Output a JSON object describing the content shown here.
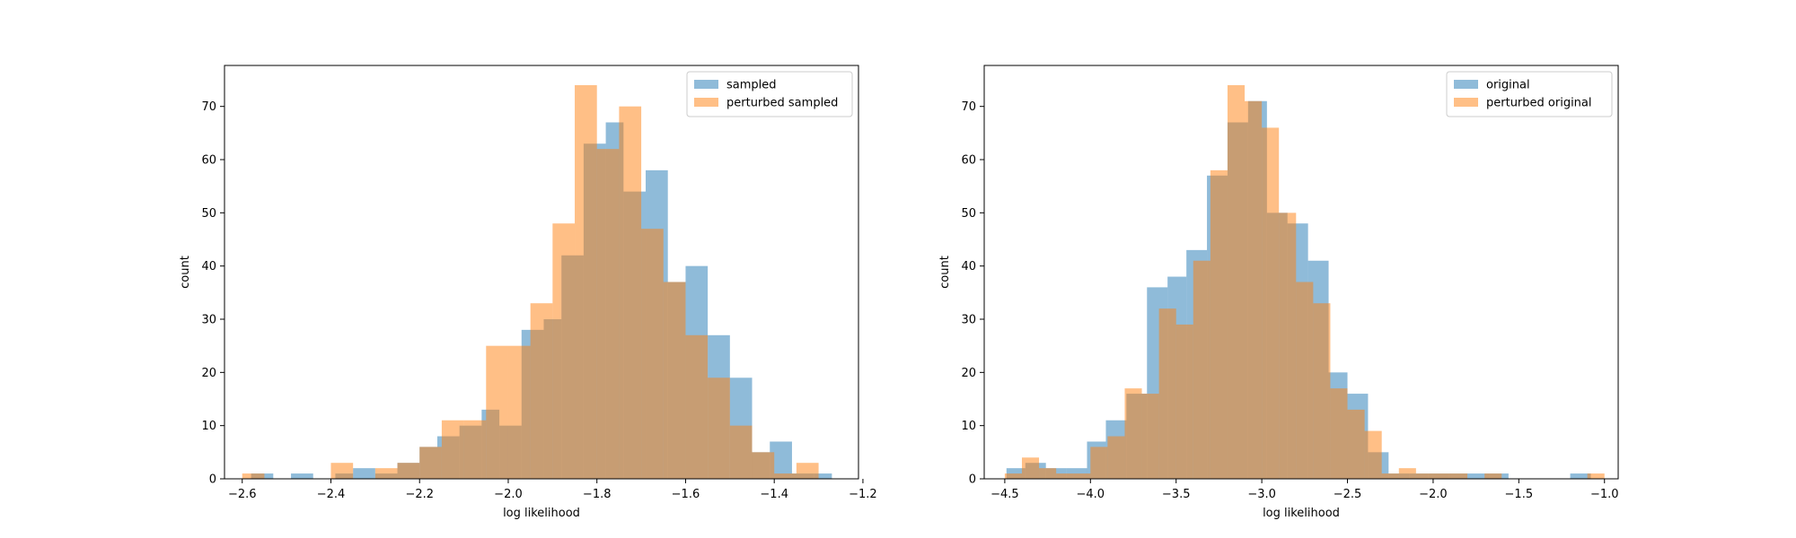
{
  "chart_data": [
    {
      "type": "histogram",
      "title": "",
      "xlabel": "log likelihood",
      "ylabel": "count",
      "xlim": [
        -2.64,
        -1.21
      ],
      "ylim": [
        0,
        77.7
      ],
      "xticks": [
        -2.6,
        -2.4,
        -2.2,
        -2.0,
        -1.8,
        -1.6,
        -1.4,
        -1.2
      ],
      "xtick_labels": [
        "−2.6",
        "−2.4",
        "−2.2",
        "−2.0",
        "−1.8",
        "−1.6",
        "−1.4",
        "−1.2"
      ],
      "yticks": [
        0,
        10,
        20,
        30,
        40,
        50,
        60,
        70
      ],
      "ytick_labels": [
        "0",
        "10",
        "20",
        "30",
        "40",
        "50",
        "60",
        "70"
      ],
      "legend_position": "upper right",
      "grid": false,
      "series": [
        {
          "name": "sampled",
          "color": "#1f77b4",
          "alpha": 0.5,
          "bins": [
            {
              "x0": -2.58,
              "x1": -2.53,
              "count": 1
            },
            {
              "x0": -2.53,
              "x1": -2.49,
              "count": 0
            },
            {
              "x0": -2.49,
              "x1": -2.44,
              "count": 1
            },
            {
              "x0": -2.44,
              "x1": -2.39,
              "count": 0
            },
            {
              "x0": -2.39,
              "x1": -2.35,
              "count": 1
            },
            {
              "x0": -2.35,
              "x1": -2.3,
              "count": 2
            },
            {
              "x0": -2.3,
              "x1": -2.25,
              "count": 1
            },
            {
              "x0": -2.25,
              "x1": -2.2,
              "count": 3
            },
            {
              "x0": -2.2,
              "x1": -2.16,
              "count": 6
            },
            {
              "x0": -2.16,
              "x1": -2.11,
              "count": 8
            },
            {
              "x0": -2.11,
              "x1": -2.06,
              "count": 10
            },
            {
              "x0": -2.06,
              "x1": -2.02,
              "count": 13
            },
            {
              "x0": -2.02,
              "x1": -1.97,
              "count": 10
            },
            {
              "x0": -1.97,
              "x1": -1.92,
              "count": 28
            },
            {
              "x0": -1.92,
              "x1": -1.88,
              "count": 30
            },
            {
              "x0": -1.88,
              "x1": -1.83,
              "count": 42
            },
            {
              "x0": -1.83,
              "x1": -1.78,
              "count": 63
            },
            {
              "x0": -1.78,
              "x1": -1.74,
              "count": 67
            },
            {
              "x0": -1.74,
              "x1": -1.69,
              "count": 54
            },
            {
              "x0": -1.69,
              "x1": -1.64,
              "count": 58
            },
            {
              "x0": -1.64,
              "x1": -1.6,
              "count": 37
            },
            {
              "x0": -1.6,
              "x1": -1.55,
              "count": 40
            },
            {
              "x0": -1.55,
              "x1": -1.5,
              "count": 27
            },
            {
              "x0": -1.5,
              "x1": -1.45,
              "count": 19
            },
            {
              "x0": -1.45,
              "x1": -1.41,
              "count": 5
            },
            {
              "x0": -1.41,
              "x1": -1.36,
              "count": 7
            },
            {
              "x0": -1.36,
              "x1": -1.31,
              "count": 1
            },
            {
              "x0": -1.31,
              "x1": -1.27,
              "count": 1
            }
          ]
        },
        {
          "name": "perturbed sampled",
          "color": "#ff7f0e",
          "alpha": 0.5,
          "bins": [
            {
              "x0": -2.6,
              "x1": -2.55,
              "count": 1
            },
            {
              "x0": -2.55,
              "x1": -2.4,
              "count": 0
            },
            {
              "x0": -2.4,
              "x1": -2.35,
              "count": 3
            },
            {
              "x0": -2.35,
              "x1": -2.3,
              "count": 0
            },
            {
              "x0": -2.3,
              "x1": -2.25,
              "count": 2
            },
            {
              "x0": -2.25,
              "x1": -2.2,
              "count": 3
            },
            {
              "x0": -2.2,
              "x1": -2.15,
              "count": 6
            },
            {
              "x0": -2.15,
              "x1": -2.1,
              "count": 11
            },
            {
              "x0": -2.1,
              "x1": -2.05,
              "count": 11
            },
            {
              "x0": -2.05,
              "x1": -2.0,
              "count": 25
            },
            {
              "x0": -2.0,
              "x1": -1.95,
              "count": 25
            },
            {
              "x0": -1.95,
              "x1": -1.9,
              "count": 33
            },
            {
              "x0": -1.9,
              "x1": -1.85,
              "count": 48
            },
            {
              "x0": -1.85,
              "x1": -1.8,
              "count": 74
            },
            {
              "x0": -1.8,
              "x1": -1.75,
              "count": 62
            },
            {
              "x0": -1.75,
              "x1": -1.7,
              "count": 70
            },
            {
              "x0": -1.7,
              "x1": -1.65,
              "count": 47
            },
            {
              "x0": -1.65,
              "x1": -1.6,
              "count": 37
            },
            {
              "x0": -1.6,
              "x1": -1.55,
              "count": 27
            },
            {
              "x0": -1.55,
              "x1": -1.5,
              "count": 19
            },
            {
              "x0": -1.5,
              "x1": -1.45,
              "count": 10
            },
            {
              "x0": -1.45,
              "x1": -1.4,
              "count": 5
            },
            {
              "x0": -1.4,
              "x1": -1.35,
              "count": 1
            },
            {
              "x0": -1.35,
              "x1": -1.3,
              "count": 3
            }
          ]
        }
      ]
    },
    {
      "type": "histogram",
      "title": "",
      "xlabel": "log likelihood",
      "ylabel": "count",
      "xlim": [
        -4.62,
        -0.92
      ],
      "ylim": [
        0,
        77.7
      ],
      "xticks": [
        -4.5,
        -4.0,
        -3.5,
        -3.0,
        -2.5,
        -2.0,
        -1.5,
        -1.0
      ],
      "xtick_labels": [
        "−4.5",
        "−4.0",
        "−3.5",
        "−3.0",
        "−2.5",
        "−2.0",
        "−1.5",
        "−1.0"
      ],
      "yticks": [
        0,
        10,
        20,
        30,
        40,
        50,
        60,
        70
      ],
      "ytick_labels": [
        "0",
        "10",
        "20",
        "30",
        "40",
        "50",
        "60",
        "70"
      ],
      "legend_position": "upper right",
      "grid": false,
      "series": [
        {
          "name": "original",
          "color": "#1f77b4",
          "alpha": 0.5,
          "bins": [
            {
              "x0": -4.49,
              "x1": -4.38,
              "count": 2
            },
            {
              "x0": -4.38,
              "x1": -4.26,
              "count": 3
            },
            {
              "x0": -4.26,
              "x1": -4.14,
              "count": 2
            },
            {
              "x0": -4.14,
              "x1": -4.02,
              "count": 2
            },
            {
              "x0": -4.02,
              "x1": -3.91,
              "count": 7
            },
            {
              "x0": -3.91,
              "x1": -3.79,
              "count": 11
            },
            {
              "x0": -3.79,
              "x1": -3.67,
              "count": 16
            },
            {
              "x0": -3.67,
              "x1": -3.55,
              "count": 36
            },
            {
              "x0": -3.55,
              "x1": -3.44,
              "count": 38
            },
            {
              "x0": -3.44,
              "x1": -3.32,
              "count": 43
            },
            {
              "x0": -3.32,
              "x1": -3.2,
              "count": 57
            },
            {
              "x0": -3.2,
              "x1": -3.08,
              "count": 67
            },
            {
              "x0": -3.08,
              "x1": -2.97,
              "count": 71
            },
            {
              "x0": -2.97,
              "x1": -2.85,
              "count": 50
            },
            {
              "x0": -2.85,
              "x1": -2.73,
              "count": 48
            },
            {
              "x0": -2.73,
              "x1": -2.61,
              "count": 41
            },
            {
              "x0": -2.61,
              "x1": -2.5,
              "count": 20
            },
            {
              "x0": -2.5,
              "x1": -2.38,
              "count": 16
            },
            {
              "x0": -2.38,
              "x1": -2.26,
              "count": 5
            },
            {
              "x0": -2.26,
              "x1": -2.14,
              "count": 1
            },
            {
              "x0": -2.14,
              "x1": -2.03,
              "count": 1
            },
            {
              "x0": -2.03,
              "x1": -1.91,
              "count": 1
            },
            {
              "x0": -1.91,
              "x1": -1.79,
              "count": 1
            },
            {
              "x0": -1.79,
              "x1": -1.67,
              "count": 1
            },
            {
              "x0": -1.67,
              "x1": -1.56,
              "count": 1
            },
            {
              "x0": -1.56,
              "x1": -1.2,
              "count": 0
            },
            {
              "x0": -1.2,
              "x1": -1.08,
              "count": 1
            }
          ]
        },
        {
          "name": "perturbed original",
          "color": "#ff7f0e",
          "alpha": 0.5,
          "bins": [
            {
              "x0": -4.5,
              "x1": -4.4,
              "count": 1
            },
            {
              "x0": -4.4,
              "x1": -4.3,
              "count": 4
            },
            {
              "x0": -4.3,
              "x1": -4.2,
              "count": 2
            },
            {
              "x0": -4.2,
              "x1": -4.1,
              "count": 1
            },
            {
              "x0": -4.1,
              "x1": -4.0,
              "count": 1
            },
            {
              "x0": -4.0,
              "x1": -3.9,
              "count": 6
            },
            {
              "x0": -3.9,
              "x1": -3.8,
              "count": 8
            },
            {
              "x0": -3.8,
              "x1": -3.7,
              "count": 17
            },
            {
              "x0": -3.7,
              "x1": -3.6,
              "count": 16
            },
            {
              "x0": -3.6,
              "x1": -3.5,
              "count": 32
            },
            {
              "x0": -3.5,
              "x1": -3.4,
              "count": 29
            },
            {
              "x0": -3.4,
              "x1": -3.3,
              "count": 41
            },
            {
              "x0": -3.3,
              "x1": -3.2,
              "count": 58
            },
            {
              "x0": -3.2,
              "x1": -3.1,
              "count": 74
            },
            {
              "x0": -3.1,
              "x1": -3.0,
              "count": 71
            },
            {
              "x0": -3.0,
              "x1": -2.9,
              "count": 66
            },
            {
              "x0": -2.9,
              "x1": -2.8,
              "count": 50
            },
            {
              "x0": -2.8,
              "x1": -2.7,
              "count": 37
            },
            {
              "x0": -2.7,
              "x1": -2.6,
              "count": 33
            },
            {
              "x0": -2.6,
              "x1": -2.5,
              "count": 17
            },
            {
              "x0": -2.5,
              "x1": -2.4,
              "count": 13
            },
            {
              "x0": -2.4,
              "x1": -2.3,
              "count": 9
            },
            {
              "x0": -2.3,
              "x1": -2.2,
              "count": 1
            },
            {
              "x0": -2.2,
              "x1": -2.1,
              "count": 2
            },
            {
              "x0": -2.1,
              "x1": -2.0,
              "count": 1
            },
            {
              "x0": -2.0,
              "x1": -1.9,
              "count": 1
            },
            {
              "x0": -1.9,
              "x1": -1.8,
              "count": 1
            },
            {
              "x0": -1.8,
              "x1": -1.7,
              "count": 0
            },
            {
              "x0": -1.7,
              "x1": -1.6,
              "count": 1
            },
            {
              "x0": -1.6,
              "x1": -1.1,
              "count": 0
            },
            {
              "x0": -1.1,
              "x1": -1.0,
              "count": 1
            }
          ]
        }
      ]
    }
  ]
}
